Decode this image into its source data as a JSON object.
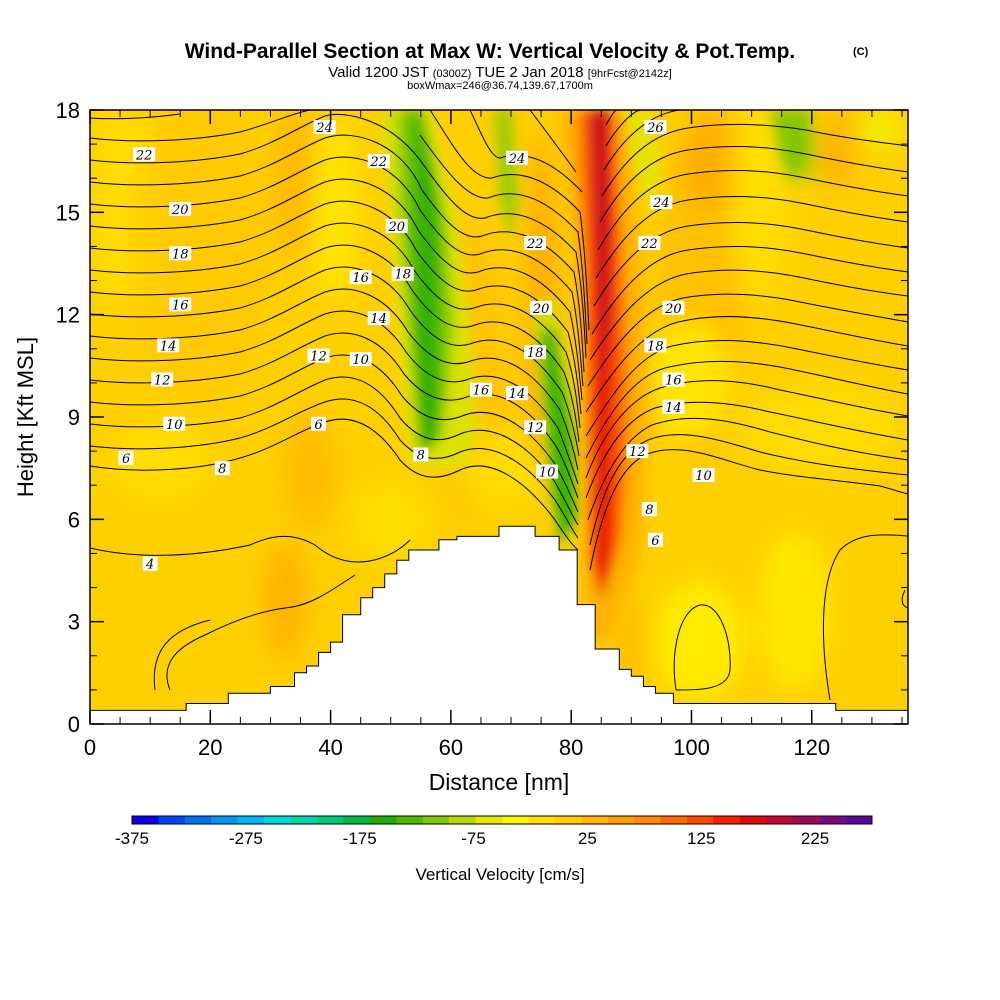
{
  "chart_data": {
    "type": "heatmap",
    "title": "Wind-Parallel Section at Max W: Vertical Velocity & Pot.Temp.",
    "title_unit": "(C)",
    "subtitle_main": "Valid 1200 JST",
    "subtitle_utc": "(0300Z)",
    "subtitle_date": "TUE 2 Jan 2018",
    "subtitle_fcst": "[9hrFcst@2142z]",
    "subtitle2": "boxWmax=246@36.74,139.67,1700m",
    "xlabel": "Distance [nm]",
    "ylabel": "Height [Kft MSL]",
    "xlim": [
      0,
      136
    ],
    "ylim": [
      0,
      18
    ],
    "x_ticks": [
      "0",
      "20",
      "40",
      "60",
      "80",
      "100",
      "120"
    ],
    "y_ticks": [
      "0",
      "3",
      "6",
      "9",
      "12",
      "15",
      "18"
    ],
    "colorbar": {
      "label": "Vertical Velocity [cm/s]",
      "range": [
        -375,
        275
      ],
      "tick_labels": [
        "-375",
        "-275",
        "-175",
        "-75",
        "25",
        "125",
        "225"
      ],
      "colors": [
        "#0c00f0",
        "#0045f5",
        "#0070f5",
        "#0096f5",
        "#00b8f0",
        "#00d8d8",
        "#00d4a6",
        "#00c978",
        "#00b844",
        "#22ad00",
        "#50b800",
        "#82c800",
        "#b6d800",
        "#e6e800",
        "#f8f800",
        "#ffe000",
        "#ffcc00",
        "#ffb600",
        "#ffa000",
        "#ff8800",
        "#ff6a00",
        "#ff4800",
        "#f02000",
        "#dc0a0a",
        "#c00830",
        "#a0085a",
        "#7a0880",
        "#5a0896"
      ]
    },
    "theta_contour_labels": [
      {
        "x": 6,
        "y": 7.8,
        "label": "6"
      },
      {
        "x": 10,
        "y": 4.7,
        "label": "4"
      },
      {
        "x": 14,
        "y": 8.8,
        "label": "10"
      },
      {
        "x": 12,
        "y": 10.1,
        "label": "12"
      },
      {
        "x": 13,
        "y": 11.1,
        "label": "14"
      },
      {
        "x": 15,
        "y": 12.3,
        "label": "16"
      },
      {
        "x": 15,
        "y": 13.8,
        "label": "18"
      },
      {
        "x": 15,
        "y": 15.1,
        "label": "20"
      },
      {
        "x": 9,
        "y": 16.7,
        "label": "22"
      },
      {
        "x": 39,
        "y": 17.5,
        "label": "24"
      },
      {
        "x": 22,
        "y": 7.5,
        "label": "8"
      },
      {
        "x": 38,
        "y": 8.8,
        "label": "6"
      },
      {
        "x": 38,
        "y": 10.8,
        "label": "12"
      },
      {
        "x": 45,
        "y": 10.7,
        "label": "10"
      },
      {
        "x": 45,
        "y": 13.1,
        "label": "16"
      },
      {
        "x": 48,
        "y": 11.9,
        "label": "14"
      },
      {
        "x": 52,
        "y": 13.2,
        "label": "18"
      },
      {
        "x": 51,
        "y": 14.6,
        "label": "20"
      },
      {
        "x": 48,
        "y": 16.5,
        "label": "22"
      },
      {
        "x": 55,
        "y": 7.9,
        "label": "8"
      },
      {
        "x": 65,
        "y": 9.8,
        "label": "16"
      },
      {
        "x": 71,
        "y": 9.7,
        "label": "14"
      },
      {
        "x": 74,
        "y": 8.7,
        "label": "12"
      },
      {
        "x": 76,
        "y": 7.4,
        "label": "10"
      },
      {
        "x": 74,
        "y": 10.9,
        "label": "18"
      },
      {
        "x": 75,
        "y": 12.2,
        "label": "20"
      },
      {
        "x": 74,
        "y": 14.1,
        "label": "22"
      },
      {
        "x": 71,
        "y": 16.6,
        "label": "24"
      },
      {
        "x": 94,
        "y": 17.5,
        "label": "26"
      },
      {
        "x": 95,
        "y": 15.3,
        "label": "24"
      },
      {
        "x": 93,
        "y": 14.1,
        "label": "22"
      },
      {
        "x": 97,
        "y": 12.2,
        "label": "20"
      },
      {
        "x": 94,
        "y": 11.1,
        "label": "18"
      },
      {
        "x": 97,
        "y": 10.1,
        "label": "16"
      },
      {
        "x": 97,
        "y": 9.3,
        "label": "14"
      },
      {
        "x": 91,
        "y": 8.0,
        "label": "12"
      },
      {
        "x": 102,
        "y": 7.3,
        "label": "10"
      },
      {
        "x": 93,
        "y": 6.3,
        "label": "8"
      },
      {
        "x": 94,
        "y": 5.4,
        "label": "6"
      }
    ],
    "terrain_profile": [
      {
        "x": 0,
        "y": 0.4
      },
      {
        "x": 16,
        "y": 0.4
      },
      {
        "x": 16,
        "y": 0.6
      },
      {
        "x": 23,
        "y": 0.6
      },
      {
        "x": 23,
        "y": 0.9
      },
      {
        "x": 30,
        "y": 0.9
      },
      {
        "x": 30,
        "y": 1.1
      },
      {
        "x": 34,
        "y": 1.1
      },
      {
        "x": 34,
        "y": 1.5
      },
      {
        "x": 36,
        "y": 1.5
      },
      {
        "x": 36,
        "y": 1.7
      },
      {
        "x": 38,
        "y": 1.7
      },
      {
        "x": 38,
        "y": 2.1
      },
      {
        "x": 40,
        "y": 2.1
      },
      {
        "x": 40,
        "y": 2.4
      },
      {
        "x": 42,
        "y": 2.4
      },
      {
        "x": 42,
        "y": 3.2
      },
      {
        "x": 45,
        "y": 3.2
      },
      {
        "x": 45,
        "y": 3.7
      },
      {
        "x": 47,
        "y": 3.7
      },
      {
        "x": 47,
        "y": 4.0
      },
      {
        "x": 49,
        "y": 4.0
      },
      {
        "x": 49,
        "y": 4.4
      },
      {
        "x": 51,
        "y": 4.4
      },
      {
        "x": 51,
        "y": 4.8
      },
      {
        "x": 53,
        "y": 4.8
      },
      {
        "x": 53,
        "y": 5.1
      },
      {
        "x": 58,
        "y": 5.1
      },
      {
        "x": 58,
        "y": 5.4
      },
      {
        "x": 61,
        "y": 5.4
      },
      {
        "x": 61,
        "y": 5.5
      },
      {
        "x": 68,
        "y": 5.5
      },
      {
        "x": 68,
        "y": 5.8
      },
      {
        "x": 74,
        "y": 5.8
      },
      {
        "x": 74,
        "y": 5.5
      },
      {
        "x": 78,
        "y": 5.5
      },
      {
        "x": 78,
        "y": 5.1
      },
      {
        "x": 81,
        "y": 5.1
      },
      {
        "x": 81,
        "y": 3.5
      },
      {
        "x": 84,
        "y": 3.5
      },
      {
        "x": 84,
        "y": 2.2
      },
      {
        "x": 88,
        "y": 2.2
      },
      {
        "x": 88,
        "y": 1.6
      },
      {
        "x": 90,
        "y": 1.6
      },
      {
        "x": 90,
        "y": 1.4
      },
      {
        "x": 92,
        "y": 1.4
      },
      {
        "x": 92,
        "y": 1.1
      },
      {
        "x": 94,
        "y": 1.1
      },
      {
        "x": 94,
        "y": 0.9
      },
      {
        "x": 97,
        "y": 0.9
      },
      {
        "x": 97,
        "y": 0.6
      },
      {
        "x": 124,
        "y": 0.6
      },
      {
        "x": 124,
        "y": 0.4
      },
      {
        "x": 136,
        "y": 0.4
      }
    ]
  }
}
